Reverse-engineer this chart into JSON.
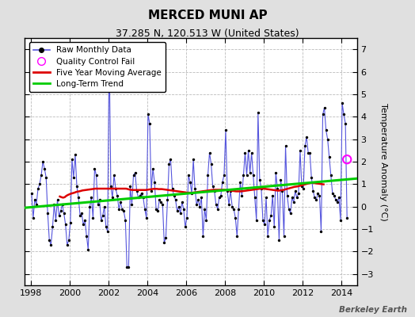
{
  "title": "MERCED MUNI AP",
  "subtitle": "37.285 N, 120.513 W (United States)",
  "ylabel": "Temperature Anomaly (°C)",
  "watermark": "Berkeley Earth",
  "xlim": [
    1997.7,
    2014.8
  ],
  "ylim": [
    -3.5,
    7.5
  ],
  "yticks": [
    -3,
    -2,
    -1,
    0,
    1,
    2,
    3,
    4,
    5,
    6,
    7
  ],
  "xticks": [
    1998,
    2000,
    2002,
    2004,
    2006,
    2008,
    2010,
    2012,
    2014
  ],
  "bg_color": "#e0e0e0",
  "plot_bg_color": "#ffffff",
  "raw_color": "#5555dd",
  "raw_dot_color": "#000000",
  "moving_avg_color": "#dd0000",
  "trend_color": "#00cc00",
  "qc_fail_color": "#ff00ff",
  "legend_loc": "upper left",
  "raw_monthly": [
    [
      1998.042,
      0.6
    ],
    [
      1998.125,
      -0.5
    ],
    [
      1998.208,
      0.3
    ],
    [
      1998.292,
      0.1
    ],
    [
      1998.375,
      0.8
    ],
    [
      1998.458,
      1.0
    ],
    [
      1998.542,
      1.4
    ],
    [
      1998.625,
      2.0
    ],
    [
      1998.708,
      1.7
    ],
    [
      1998.792,
      1.3
    ],
    [
      1998.875,
      -0.3
    ],
    [
      1998.958,
      -1.5
    ],
    [
      1999.042,
      -1.7
    ],
    [
      1999.125,
      -0.9
    ],
    [
      1999.208,
      0.1
    ],
    [
      1999.292,
      -0.6
    ],
    [
      1999.375,
      0.3
    ],
    [
      1999.458,
      -0.4
    ],
    [
      1999.542,
      -0.2
    ],
    [
      1999.625,
      0.1
    ],
    [
      1999.708,
      -0.3
    ],
    [
      1999.792,
      -0.8
    ],
    [
      1999.875,
      -1.7
    ],
    [
      1999.958,
      -1.5
    ],
    [
      2000.042,
      -0.7
    ],
    [
      2000.125,
      2.1
    ],
    [
      2000.208,
      1.3
    ],
    [
      2000.292,
      2.3
    ],
    [
      2000.375,
      0.9
    ],
    [
      2000.458,
      0.4
    ],
    [
      2000.542,
      -0.4
    ],
    [
      2000.625,
      -0.3
    ],
    [
      2000.708,
      -0.8
    ],
    [
      2000.792,
      -0.6
    ],
    [
      2000.875,
      -1.3
    ],
    [
      2000.958,
      -1.9
    ],
    [
      2001.042,
      0.0
    ],
    [
      2001.125,
      0.4
    ],
    [
      2001.208,
      -0.5
    ],
    [
      2001.292,
      1.7
    ],
    [
      2001.375,
      1.4
    ],
    [
      2001.458,
      0.1
    ],
    [
      2001.542,
      0.3
    ],
    [
      2001.625,
      -0.6
    ],
    [
      2001.708,
      -0.4
    ],
    [
      2001.792,
      0.0
    ],
    [
      2001.875,
      -0.9
    ],
    [
      2001.958,
      -1.1
    ],
    [
      2002.042,
      7.0
    ],
    [
      2002.125,
      0.9
    ],
    [
      2002.208,
      0.4
    ],
    [
      2002.292,
      1.4
    ],
    [
      2002.375,
      0.8
    ],
    [
      2002.458,
      0.5
    ],
    [
      2002.542,
      -0.1
    ],
    [
      2002.625,
      0.2
    ],
    [
      2002.708,
      -0.1
    ],
    [
      2002.792,
      -0.2
    ],
    [
      2002.875,
      -0.6
    ],
    [
      2002.958,
      -2.7
    ],
    [
      2003.042,
      -2.7
    ],
    [
      2003.125,
      0.9
    ],
    [
      2003.208,
      0.1
    ],
    [
      2003.292,
      1.4
    ],
    [
      2003.375,
      1.5
    ],
    [
      2003.458,
      0.7
    ],
    [
      2003.542,
      0.4
    ],
    [
      2003.625,
      0.5
    ],
    [
      2003.708,
      0.6
    ],
    [
      2003.792,
      0.4
    ],
    [
      2003.875,
      -0.1
    ],
    [
      2003.958,
      -0.5
    ],
    [
      2004.042,
      4.1
    ],
    [
      2004.125,
      3.7
    ],
    [
      2004.208,
      0.7
    ],
    [
      2004.292,
      1.7
    ],
    [
      2004.375,
      1.1
    ],
    [
      2004.458,
      -0.1
    ],
    [
      2004.542,
      -0.2
    ],
    [
      2004.625,
      0.3
    ],
    [
      2004.708,
      0.2
    ],
    [
      2004.792,
      0.1
    ],
    [
      2004.875,
      -1.6
    ],
    [
      2004.958,
      -1.4
    ],
    [
      2005.042,
      0.3
    ],
    [
      2005.125,
      1.9
    ],
    [
      2005.208,
      2.1
    ],
    [
      2005.292,
      0.8
    ],
    [
      2005.375,
      0.5
    ],
    [
      2005.458,
      0.3
    ],
    [
      2005.542,
      -0.2
    ],
    [
      2005.625,
      0.0
    ],
    [
      2005.708,
      -0.3
    ],
    [
      2005.792,
      0.2
    ],
    [
      2005.875,
      -0.1
    ],
    [
      2005.958,
      -0.9
    ],
    [
      2006.042,
      -0.5
    ],
    [
      2006.125,
      1.4
    ],
    [
      2006.208,
      1.1
    ],
    [
      2006.292,
      0.6
    ],
    [
      2006.375,
      2.1
    ],
    [
      2006.458,
      0.8
    ],
    [
      2006.542,
      0.1
    ],
    [
      2006.625,
      0.3
    ],
    [
      2006.708,
      0.0
    ],
    [
      2006.792,
      0.4
    ],
    [
      2006.875,
      -1.3
    ],
    [
      2006.958,
      -0.1
    ],
    [
      2007.042,
      -0.6
    ],
    [
      2007.125,
      1.4
    ],
    [
      2007.208,
      2.4
    ],
    [
      2007.292,
      1.9
    ],
    [
      2007.375,
      0.9
    ],
    [
      2007.458,
      0.7
    ],
    [
      2007.542,
      0.1
    ],
    [
      2007.625,
      -0.1
    ],
    [
      2007.708,
      0.4
    ],
    [
      2007.792,
      0.5
    ],
    [
      2007.875,
      1.1
    ],
    [
      2007.958,
      1.4
    ],
    [
      2008.042,
      3.4
    ],
    [
      2008.125,
      0.7
    ],
    [
      2008.208,
      0.1
    ],
    [
      2008.292,
      0.7
    ],
    [
      2008.375,
      0.0
    ],
    [
      2008.458,
      -0.1
    ],
    [
      2008.542,
      -0.5
    ],
    [
      2008.625,
      -1.3
    ],
    [
      2008.708,
      -0.1
    ],
    [
      2008.792,
      1.1
    ],
    [
      2008.875,
      0.5
    ],
    [
      2008.958,
      1.4
    ],
    [
      2009.042,
      2.4
    ],
    [
      2009.125,
      1.4
    ],
    [
      2009.208,
      2.5
    ],
    [
      2009.292,
      1.5
    ],
    [
      2009.375,
      2.4
    ],
    [
      2009.458,
      1.4
    ],
    [
      2009.542,
      0.4
    ],
    [
      2009.625,
      -0.6
    ],
    [
      2009.708,
      4.2
    ],
    [
      2009.792,
      1.2
    ],
    [
      2009.875,
      0.8
    ],
    [
      2009.958,
      -0.6
    ],
    [
      2010.042,
      -0.8
    ],
    [
      2010.125,
      0.4
    ],
    [
      2010.208,
      -1.3
    ],
    [
      2010.292,
      -0.6
    ],
    [
      2010.375,
      -0.4
    ],
    [
      2010.458,
      0.5
    ],
    [
      2010.542,
      -0.9
    ],
    [
      2010.625,
      1.5
    ],
    [
      2010.708,
      0.8
    ],
    [
      2010.792,
      -1.5
    ],
    [
      2010.875,
      1.2
    ],
    [
      2010.958,
      0.7
    ],
    [
      2011.042,
      -1.3
    ],
    [
      2011.125,
      2.7
    ],
    [
      2011.208,
      0.5
    ],
    [
      2011.292,
      -0.1
    ],
    [
      2011.375,
      -0.3
    ],
    [
      2011.458,
      0.4
    ],
    [
      2011.542,
      0.2
    ],
    [
      2011.625,
      0.7
    ],
    [
      2011.708,
      0.4
    ],
    [
      2011.792,
      0.6
    ],
    [
      2011.875,
      2.5
    ],
    [
      2011.958,
      0.9
    ],
    [
      2012.042,
      0.8
    ],
    [
      2012.125,
      2.7
    ],
    [
      2012.208,
      3.1
    ],
    [
      2012.292,
      2.4
    ],
    [
      2012.375,
      2.4
    ],
    [
      2012.458,
      1.3
    ],
    [
      2012.542,
      0.7
    ],
    [
      2012.625,
      0.4
    ],
    [
      2012.708,
      0.3
    ],
    [
      2012.792,
      0.6
    ],
    [
      2012.875,
      0.5
    ],
    [
      2012.958,
      -1.1
    ],
    [
      2013.042,
      4.1
    ],
    [
      2013.125,
      4.4
    ],
    [
      2013.208,
      3.4
    ],
    [
      2013.292,
      3.0
    ],
    [
      2013.375,
      2.2
    ],
    [
      2013.458,
      1.4
    ],
    [
      2013.542,
      0.6
    ],
    [
      2013.625,
      0.5
    ],
    [
      2013.708,
      0.3
    ],
    [
      2013.792,
      0.2
    ],
    [
      2013.875,
      0.4
    ],
    [
      2013.958,
      -0.6
    ],
    [
      2014.042,
      4.6
    ],
    [
      2014.125,
      4.1
    ],
    [
      2014.208,
      3.7
    ],
    [
      2014.292,
      -0.5
    ]
  ],
  "moving_avg": [
    [
      1999.5,
      0.45
    ],
    [
      1999.583,
      0.42
    ],
    [
      1999.667,
      0.4
    ],
    [
      1999.75,
      0.42
    ],
    [
      1999.833,
      0.48
    ],
    [
      1999.917,
      0.52
    ],
    [
      2000.0,
      0.55
    ],
    [
      2000.083,
      0.58
    ],
    [
      2000.167,
      0.6
    ],
    [
      2000.25,
      0.62
    ],
    [
      2000.333,
      0.65
    ],
    [
      2000.417,
      0.67
    ],
    [
      2000.5,
      0.68
    ],
    [
      2000.583,
      0.7
    ],
    [
      2000.667,
      0.72
    ],
    [
      2000.75,
      0.73
    ],
    [
      2000.833,
      0.74
    ],
    [
      2000.917,
      0.75
    ],
    [
      2001.0,
      0.76
    ],
    [
      2001.083,
      0.77
    ],
    [
      2001.167,
      0.78
    ],
    [
      2001.25,
      0.79
    ],
    [
      2001.333,
      0.8
    ],
    [
      2001.417,
      0.8
    ],
    [
      2001.5,
      0.8
    ],
    [
      2001.583,
      0.8
    ],
    [
      2001.667,
      0.8
    ],
    [
      2001.75,
      0.8
    ],
    [
      2001.833,
      0.8
    ],
    [
      2001.917,
      0.8
    ],
    [
      2002.0,
      0.8
    ],
    [
      2002.083,
      0.8
    ],
    [
      2002.167,
      0.8
    ],
    [
      2002.25,
      0.8
    ],
    [
      2002.333,
      0.8
    ],
    [
      2002.417,
      0.8
    ],
    [
      2002.5,
      0.8
    ],
    [
      2002.583,
      0.8
    ],
    [
      2002.667,
      0.8
    ],
    [
      2002.75,
      0.8
    ],
    [
      2002.833,
      0.8
    ],
    [
      2002.917,
      0.8
    ],
    [
      2003.0,
      0.78
    ],
    [
      2003.083,
      0.76
    ],
    [
      2003.167,
      0.75
    ],
    [
      2003.25,
      0.74
    ],
    [
      2003.333,
      0.74
    ],
    [
      2003.417,
      0.74
    ],
    [
      2003.5,
      0.74
    ],
    [
      2003.583,
      0.74
    ],
    [
      2003.667,
      0.74
    ],
    [
      2003.75,
      0.74
    ],
    [
      2003.833,
      0.74
    ],
    [
      2003.917,
      0.74
    ],
    [
      2004.0,
      0.75
    ],
    [
      2004.083,
      0.76
    ],
    [
      2004.167,
      0.77
    ],
    [
      2004.25,
      0.78
    ],
    [
      2004.333,
      0.79
    ],
    [
      2004.417,
      0.79
    ],
    [
      2004.5,
      0.79
    ],
    [
      2004.583,
      0.78
    ],
    [
      2004.667,
      0.78
    ],
    [
      2004.75,
      0.78
    ],
    [
      2004.833,
      0.77
    ],
    [
      2004.917,
      0.76
    ],
    [
      2005.0,
      0.75
    ],
    [
      2005.083,
      0.74
    ],
    [
      2005.167,
      0.73
    ],
    [
      2005.25,
      0.72
    ],
    [
      2005.333,
      0.71
    ],
    [
      2005.417,
      0.7
    ],
    [
      2005.5,
      0.69
    ],
    [
      2005.583,
      0.68
    ],
    [
      2005.667,
      0.67
    ],
    [
      2005.75,
      0.66
    ],
    [
      2005.833,
      0.65
    ],
    [
      2005.917,
      0.64
    ],
    [
      2006.0,
      0.63
    ],
    [
      2006.083,
      0.62
    ],
    [
      2006.167,
      0.62
    ],
    [
      2006.25,
      0.62
    ],
    [
      2006.333,
      0.62
    ],
    [
      2006.417,
      0.63
    ],
    [
      2006.5,
      0.64
    ],
    [
      2006.583,
      0.65
    ],
    [
      2006.667,
      0.66
    ],
    [
      2006.75,
      0.67
    ],
    [
      2006.833,
      0.68
    ],
    [
      2006.917,
      0.69
    ],
    [
      2007.0,
      0.7
    ],
    [
      2007.083,
      0.71
    ],
    [
      2007.167,
      0.72
    ],
    [
      2007.25,
      0.73
    ],
    [
      2007.333,
      0.74
    ],
    [
      2007.417,
      0.75
    ],
    [
      2007.5,
      0.75
    ],
    [
      2007.583,
      0.75
    ],
    [
      2007.667,
      0.75
    ],
    [
      2007.75,
      0.75
    ],
    [
      2007.833,
      0.75
    ],
    [
      2007.917,
      0.75
    ],
    [
      2008.0,
      0.75
    ],
    [
      2008.083,
      0.74
    ],
    [
      2008.167,
      0.73
    ],
    [
      2008.25,
      0.72
    ],
    [
      2008.333,
      0.71
    ],
    [
      2008.417,
      0.7
    ],
    [
      2008.5,
      0.69
    ],
    [
      2008.583,
      0.68
    ],
    [
      2008.667,
      0.68
    ],
    [
      2008.75,
      0.68
    ],
    [
      2008.833,
      0.68
    ],
    [
      2008.917,
      0.69
    ],
    [
      2009.0,
      0.7
    ],
    [
      2009.083,
      0.71
    ],
    [
      2009.167,
      0.72
    ],
    [
      2009.25,
      0.73
    ],
    [
      2009.333,
      0.74
    ],
    [
      2009.417,
      0.75
    ],
    [
      2009.5,
      0.76
    ],
    [
      2009.583,
      0.77
    ],
    [
      2009.667,
      0.78
    ],
    [
      2009.75,
      0.79
    ],
    [
      2009.833,
      0.8
    ],
    [
      2009.917,
      0.8
    ],
    [
      2010.0,
      0.8
    ],
    [
      2010.083,
      0.79
    ],
    [
      2010.167,
      0.78
    ],
    [
      2010.25,
      0.77
    ],
    [
      2010.333,
      0.76
    ],
    [
      2010.417,
      0.75
    ],
    [
      2010.5,
      0.74
    ],
    [
      2010.583,
      0.73
    ],
    [
      2010.667,
      0.72
    ],
    [
      2010.75,
      0.71
    ],
    [
      2010.833,
      0.72
    ],
    [
      2010.917,
      0.73
    ],
    [
      2011.0,
      0.74
    ],
    [
      2011.083,
      0.76
    ],
    [
      2011.167,
      0.78
    ],
    [
      2011.25,
      0.8
    ],
    [
      2011.333,
      0.82
    ],
    [
      2011.417,
      0.84
    ],
    [
      2011.5,
      0.86
    ],
    [
      2011.583,
      0.88
    ],
    [
      2011.667,
      0.89
    ],
    [
      2011.75,
      0.9
    ],
    [
      2011.833,
      0.92
    ],
    [
      2011.917,
      0.94
    ],
    [
      2012.0,
      0.96
    ],
    [
      2012.083,
      0.98
    ],
    [
      2012.167,
      1.0
    ],
    [
      2012.25,
      1.02
    ],
    [
      2012.333,
      1.04
    ],
    [
      2012.417,
      1.05
    ],
    [
      2012.5,
      1.06
    ],
    [
      2012.583,
      1.05
    ],
    [
      2012.667,
      1.04
    ],
    [
      2012.75,
      1.03
    ],
    [
      2012.833,
      1.02
    ],
    [
      2012.917,
      1.01
    ],
    [
      2013.0,
      1.0
    ],
    [
      2013.083,
      0.99
    ]
  ],
  "trend_line": [
    [
      1997.7,
      -0.05
    ],
    [
      2014.8,
      1.25
    ]
  ],
  "qc_fail_points": [
    [
      2014.292,
      2.1
    ]
  ],
  "grid_color": "#bbbbbb",
  "grid_style": "--"
}
